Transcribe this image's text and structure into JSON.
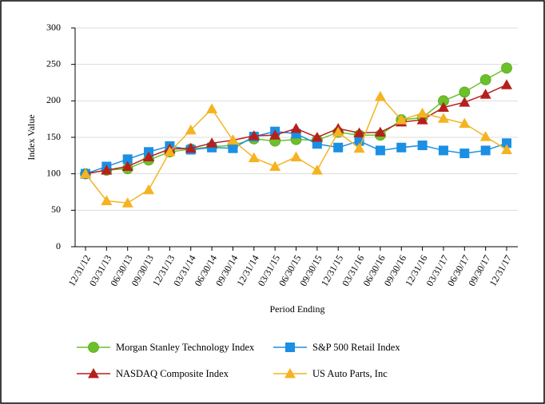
{
  "chart_data": {
    "type": "line",
    "y_label": "Index Value",
    "x_label": "Period Ending",
    "categories": [
      "12/31/12",
      "03/31/13",
      "06/30/13",
      "09/30/13",
      "12/31/13",
      "03/31/14",
      "06/30/14",
      "09/30/14",
      "12/31/14",
      "03/31/15",
      "06/30/15",
      "09/30/15",
      "12/31/15",
      "03/31/16",
      "06/30/16",
      "09/30/16",
      "12/31/16",
      "03/31/17",
      "06/30/17",
      "09/30/17",
      "12/31/17"
    ],
    "series": [
      {
        "name": "Morgan Stanley Technology Index",
        "color": "#6cc12a",
        "marker": "circle",
        "values": [
          100,
          105,
          107,
          119,
          130,
          134,
          137,
          139,
          148,
          145,
          147,
          146,
          157,
          153,
          153,
          174,
          177,
          200,
          212,
          229,
          245
        ]
      },
      {
        "name": "S&P 500 Retail Index",
        "color": "#1b8fe3",
        "marker": "square",
        "values": [
          100,
          110,
          120,
          130,
          138,
          133,
          136,
          135,
          151,
          158,
          155,
          141,
          136,
          145,
          132,
          136,
          139,
          132,
          128,
          132,
          142
        ]
      },
      {
        "name": "NASDAQ Composite Index",
        "color": "#b5201c",
        "marker": "triangle",
        "values": [
          100,
          105,
          110,
          123,
          134,
          135,
          142,
          146,
          152,
          153,
          162,
          150,
          162,
          156,
          157,
          171,
          174,
          191,
          198,
          209,
          222
        ]
      },
      {
        "name": "US Auto Parts, Inc",
        "color": "#f5b321",
        "marker": "triangle",
        "values": [
          100,
          63,
          60,
          78,
          130,
          160,
          189,
          146,
          122,
          110,
          123,
          105,
          157,
          135,
          206,
          174,
          183,
          176,
          169,
          151,
          133
        ]
      }
    ],
    "ylim": [
      0,
      300
    ],
    "yticks": [
      0,
      50,
      100,
      150,
      200,
      250,
      300
    ],
    "grid": true
  }
}
